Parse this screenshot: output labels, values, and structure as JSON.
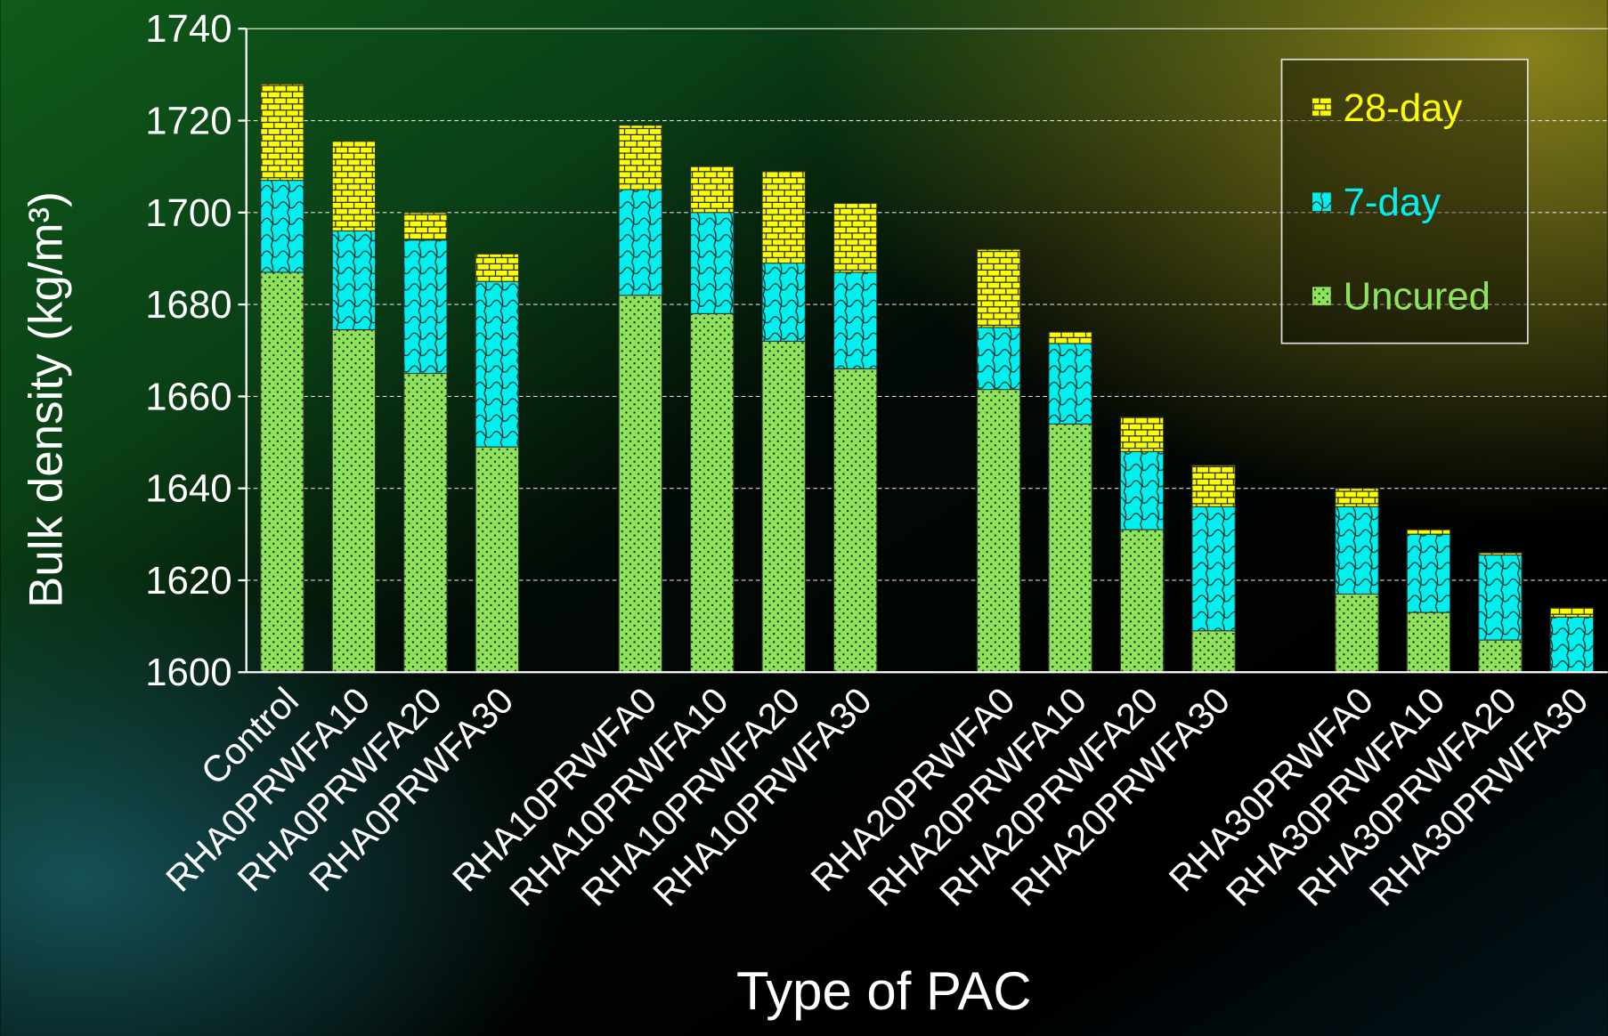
{
  "chart_data": {
    "type": "bar",
    "y_label": "Bulk density (kg/m³)",
    "x_label": "Type of PAC",
    "categories": [
      "Control",
      "RHA0PRWFA10",
      "RHA0PRWFA20",
      "RHA0PRWFA30",
      null,
      "RHA10PRWFA0",
      "RHA10PRWFA10",
      "RHA10PRWFA20",
      "RHA10PRWFA30",
      null,
      "RHA20PRWFA0",
      "RHA20PRWFA10",
      "RHA20PRWFA20",
      "RHA20PRWFA30",
      null,
      "RHA30PRWFA0",
      "RHA30PRWFA10",
      "RHA30PRWFA20",
      "RHA30PRWFA30"
    ],
    "series": [
      {
        "name": "28-day",
        "color": "#ffff00",
        "values": [
          1728,
          1715.5,
          1700,
          1691,
          null,
          1719,
          1710,
          1709,
          1702,
          null,
          1692,
          1674,
          1655.5,
          1645,
          null,
          1640,
          1631,
          1626,
          1614
        ]
      },
      {
        "name": "7-day",
        "color": "#00f0f0",
        "values": [
          1707,
          1696,
          1694,
          1685,
          null,
          1705,
          1700,
          1689,
          1687,
          null,
          1675,
          1671.5,
          1648,
          1636,
          null,
          1636,
          1630,
          1625.5,
          1612
        ]
      },
      {
        "name": "Uncured",
        "color": "#8fe35a",
        "values": [
          1687,
          1674.5,
          1665,
          1649,
          null,
          1682,
          1678,
          1672,
          1666,
          null,
          1661.5,
          1654,
          1631,
          1609,
          null,
          1617,
          1613,
          1607,
          1600
        ]
      }
    ],
    "ylim": [
      1600,
      1740
    ],
    "yticks": [
      1600,
      1620,
      1640,
      1660,
      1680,
      1700,
      1720,
      1740
    ],
    "grid": true,
    "legend_position": "top-right"
  }
}
